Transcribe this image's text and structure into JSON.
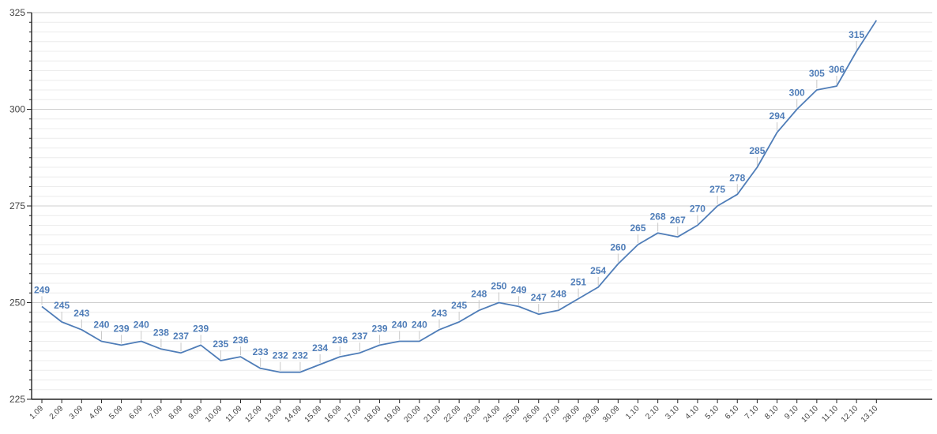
{
  "chart_data": {
    "type": "line",
    "title": "",
    "xlabel": "",
    "ylabel": "",
    "ylim": [
      225,
      325
    ],
    "y_ticks": [
      225,
      250,
      275,
      300,
      325
    ],
    "grid": true,
    "legend": "none",
    "line_color": "#4f7db8",
    "label_color": "#4f7db8",
    "categories": [
      "1.09",
      "2.09",
      "3.09",
      "4.09",
      "5.09",
      "6.09",
      "7.09",
      "8.09",
      "9.09",
      "10.09",
      "11.09",
      "12.09",
      "13.09",
      "14.09",
      "15.09",
      "16.09",
      "17.09",
      "18.09",
      "19.09",
      "20.09",
      "21.09",
      "22.09",
      "23.09",
      "24.09",
      "25.09",
      "26.09",
      "27.09",
      "28.09",
      "29.09",
      "30.09",
      "1.10",
      "2.10",
      "3.10",
      "4.10",
      "5.10",
      "6.10",
      "7.10",
      "8.10",
      "9.10",
      "10.10",
      "11.10",
      "12.10",
      "13.10"
    ],
    "series": [
      {
        "values": [
          249,
          245,
          243,
          240,
          239,
          240,
          238,
          237,
          239,
          235,
          236,
          233,
          232,
          232,
          234,
          236,
          237,
          239,
          240,
          240,
          243,
          245,
          248,
          250,
          249,
          247,
          248,
          251,
          254,
          260,
          265,
          268,
          267,
          270,
          275,
          278,
          285,
          294,
          300,
          305,
          306,
          315,
          323
        ],
        "data_labels": [
          "249",
          "245",
          "243",
          "240",
          "239",
          "240",
          "238",
          "237",
          "239",
          "235",
          "236",
          "233",
          "232",
          "232",
          "234",
          "236",
          "237",
          "239",
          "240",
          "240",
          "243",
          "245",
          "248",
          "250",
          "249",
          "247",
          "248",
          "251",
          "254",
          "260",
          "265",
          "268",
          "267",
          "270",
          "275",
          "278",
          "285",
          "294",
          "300",
          "305",
          "306",
          "315",
          ""
        ]
      }
    ]
  }
}
